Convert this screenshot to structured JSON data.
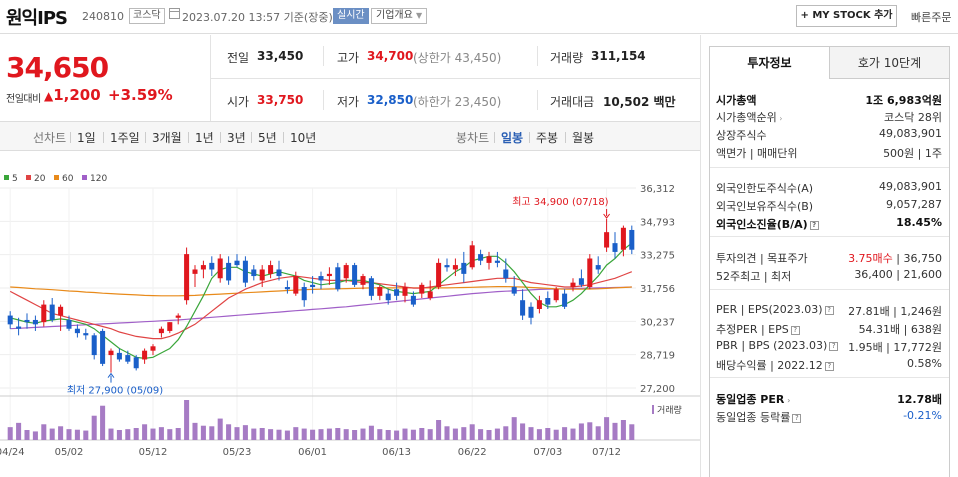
{
  "header": {
    "company": "원익IPS",
    "code": "240810",
    "market": "코스닥",
    "timestamp": "2023.07.20 13:57 기준(장중)",
    "realtime": "실시간",
    "overview": "기업개요",
    "mystock": "+ MY STOCK 추가",
    "quick_order": "빠른주문"
  },
  "price": {
    "current": "34,650",
    "prev_label": "전일대비",
    "change": "1,200",
    "change_pct": "+3.59%",
    "change_symbol": "▲"
  },
  "stats": {
    "prev_close": {
      "label": "전일",
      "value": "33,450"
    },
    "high": {
      "label": "고가",
      "value": "34,700",
      "sub": "(상한가 43,450)"
    },
    "volume": {
      "label": "거래량",
      "value": "311,154"
    },
    "open": {
      "label": "시가",
      "value": "33,750"
    },
    "low": {
      "label": "저가",
      "value": "32,850",
      "sub": "(하한가 23,450)"
    },
    "amount": {
      "label": "거래대금",
      "value": "10,502",
      "unit": "백만"
    }
  },
  "periods": {
    "label": "선차트",
    "items": [
      "1일",
      "1주일",
      "3개월",
      "1년",
      "3년",
      "5년",
      "10년"
    ],
    "candle_label": "봉차트",
    "candle_items": [
      "일봉",
      "주봉",
      "월봉"
    ],
    "candle_selected": "일봉"
  },
  "chart_data": {
    "type": "candlestick",
    "legend": [
      {
        "name": "5",
        "color": "#3aa63a"
      },
      {
        "name": "20",
        "color": "#e04444"
      },
      {
        "name": "60",
        "color": "#e88a1a"
      },
      {
        "name": "120",
        "color": "#a05fc8"
      }
    ],
    "y_ticks": [
      "36,312",
      "34,793",
      "33,275",
      "31,756",
      "30,237",
      "28,719",
      "27,200"
    ],
    "ylim": [
      27200,
      36312
    ],
    "x_ticks": [
      "04/24",
      "05/02",
      "05/12",
      "05/23",
      "06/01",
      "06/13",
      "06/22",
      "07/03",
      "07/12"
    ],
    "annotation_high": "최고 34,900 (07/18)",
    "annotation_low": "최저 27,900 (05/09)",
    "volume_label": "거래량",
    "candles": [
      [
        30500,
        30700,
        29900,
        30100
      ],
      [
        30000,
        30400,
        29600,
        29900
      ],
      [
        30300,
        30600,
        29900,
        30200
      ],
      [
        30300,
        30500,
        29800,
        30100
      ],
      [
        30200,
        31200,
        30000,
        31000
      ],
      [
        31000,
        31300,
        30200,
        30300
      ],
      [
        30500,
        31000,
        29800,
        30900
      ],
      [
        30300,
        30500,
        29800,
        29900
      ],
      [
        29900,
        30100,
        29500,
        29700
      ],
      [
        29700,
        29900,
        29400,
        29600
      ],
      [
        29600,
        29700,
        28500,
        28700
      ],
      [
        29800,
        29900,
        28200,
        28300
      ],
      [
        28700,
        29000,
        27900,
        28900
      ],
      [
        28800,
        29000,
        28400,
        28500
      ],
      [
        28700,
        28900,
        28300,
        28400
      ],
      [
        28600,
        28700,
        28000,
        28100
      ],
      [
        28500,
        29000,
        28300,
        28900
      ],
      [
        28900,
        29200,
        28700,
        29100
      ],
      [
        29700,
        30000,
        29500,
        29900
      ],
      [
        29800,
        30200,
        29700,
        30200
      ],
      [
        30400,
        30600,
        30100,
        30500
      ],
      [
        31200,
        33600,
        31000,
        33300
      ],
      [
        32400,
        32800,
        31800,
        32600
      ],
      [
        32600,
        33000,
        32200,
        32800
      ],
      [
        32900,
        33200,
        32300,
        32600
      ],
      [
        32200,
        33300,
        32000,
        33100
      ],
      [
        32900,
        33200,
        31900,
        32100
      ],
      [
        33000,
        33300,
        32700,
        32800
      ],
      [
        33000,
        33200,
        31800,
        32000
      ],
      [
        32600,
        32800,
        32100,
        32300
      ],
      [
        32100,
        32800,
        31800,
        32600
      ],
      [
        32400,
        33000,
        32200,
        32800
      ],
      [
        32600,
        33000,
        32100,
        32300
      ],
      [
        31800,
        32100,
        31500,
        31700
      ],
      [
        31500,
        32500,
        31400,
        32300
      ],
      [
        31800,
        32000,
        30900,
        31200
      ],
      [
        31900,
        32300,
        31500,
        31800
      ],
      [
        32300,
        32500,
        31700,
        32100
      ],
      [
        32300,
        32700,
        31900,
        32400
      ],
      [
        32700,
        32900,
        31600,
        31700
      ],
      [
        32200,
        32900,
        32000,
        32800
      ],
      [
        32800,
        32900,
        31800,
        31900
      ],
      [
        31900,
        32400,
        31700,
        32300
      ],
      [
        32200,
        32300,
        31200,
        31400
      ],
      [
        31400,
        31900,
        31200,
        31800
      ],
      [
        31500,
        31700,
        31000,
        31200
      ],
      [
        31700,
        32000,
        31200,
        31400
      ],
      [
        31400,
        32000,
        31100,
        31800
      ],
      [
        31400,
        31600,
        30900,
        31000
      ],
      [
        31500,
        32000,
        31300,
        31900
      ],
      [
        31300,
        32100,
        31200,
        31600
      ],
      [
        31800,
        33100,
        31700,
        32900
      ],
      [
        32800,
        33100,
        32500,
        32700
      ],
      [
        32600,
        33100,
        32300,
        32800
      ],
      [
        32900,
        33400,
        32000,
        32400
      ],
      [
        32700,
        33900,
        32600,
        33700
      ],
      [
        33300,
        33500,
        32800,
        33000
      ],
      [
        32900,
        33400,
        32600,
        33200
      ],
      [
        33000,
        33400,
        32700,
        32900
      ],
      [
        32600,
        33100,
        32000,
        32200
      ],
      [
        31800,
        32300,
        31400,
        31500
      ],
      [
        31200,
        31700,
        30300,
        30500
      ],
      [
        30900,
        31100,
        30100,
        30400
      ],
      [
        30800,
        31400,
        30600,
        31200
      ],
      [
        31300,
        31600,
        30800,
        31000
      ],
      [
        31200,
        31800,
        31100,
        31700
      ],
      [
        31500,
        31700,
        30800,
        30900
      ],
      [
        31800,
        32200,
        31600,
        32000
      ],
      [
        32200,
        32600,
        31800,
        31900
      ],
      [
        31800,
        33300,
        31700,
        33100
      ],
      [
        32800,
        33200,
        32400,
        32600
      ],
      [
        33600,
        34900,
        33400,
        34300
      ],
      [
        33800,
        34300,
        33100,
        33400
      ],
      [
        33500,
        34600,
        33200,
        34500
      ],
      [
        34400,
        34600,
        33300,
        33500
      ]
    ],
    "ma5": [
      30400,
      30300,
      30200,
      30150,
      30250,
      30300,
      30350,
      30300,
      30200,
      30100,
      29900,
      29600,
      29300,
      29000,
      28800,
      28600,
      28550,
      28600,
      28800,
      29000,
      29400,
      30000,
      30700,
      31400,
      32200,
      32600,
      32700,
      32700,
      32500,
      32400,
      32300,
      32400,
      32500,
      32400,
      32300,
      32100,
      32000,
      31900,
      31950,
      32000,
      32100,
      32100,
      32100,
      32000,
      31900,
      31700,
      31600,
      31550,
      31500,
      31550,
      31600,
      31900,
      32200,
      32500,
      32700,
      33000,
      33100,
      33200,
      33200,
      32900,
      32500,
      32000,
      31500,
      31100,
      30900,
      30900,
      31000,
      31200,
      31500,
      31900,
      32300,
      32800,
      33100,
      33500,
      33800
    ],
    "ma20": [
      31600,
      31400,
      31200,
      31000,
      30800,
      30600,
      30500,
      30400,
      30300,
      30200,
      30100,
      30000,
      29900,
      29750,
      29650,
      29550,
      29500,
      29450,
      29450,
      29550,
      29700,
      29900,
      30100,
      30400,
      30700,
      31000,
      31300,
      31500,
      31700,
      31850,
      32000,
      32100,
      32200,
      32250,
      32300,
      32250,
      32200,
      32150,
      32100,
      32100,
      32100,
      32050,
      32000,
      32000,
      31950,
      31900,
      31850,
      31800,
      31750,
      31750,
      31800,
      31850,
      31900,
      31950,
      32000,
      32050,
      32100,
      32150,
      32200,
      32200,
      32200,
      32100,
      32000,
      31950,
      31900,
      31850,
      31800,
      31800,
      31850,
      31900,
      32000,
      32100,
      32200,
      32350,
      32500
    ],
    "ma60": [
      31800,
      31780,
      31750,
      31720,
      31700,
      31680,
      31650,
      31620,
      31600,
      31570,
      31550,
      31520,
      31500,
      31480,
      31460,
      31440,
      31420,
      31410,
      31400,
      31400,
      31400,
      31410,
      31420,
      31440,
      31460,
      31480,
      31500,
      31520,
      31540,
      31560,
      31580,
      31600,
      31620,
      31640,
      31660,
      31680,
      31690,
      31700,
      31710,
      31720,
      31730,
      31740,
      31750,
      31760,
      31760,
      31760,
      31760,
      31760,
      31760,
      31760,
      31760,
      31760,
      31760,
      31770,
      31780,
      31790,
      31800,
      31810,
      31820,
      31820,
      31810,
      31800,
      31780,
      31760,
      31740,
      31720,
      31700,
      31700,
      31700,
      31710,
      31720,
      31740,
      31760,
      31780,
      31800
    ],
    "ma120": [
      29900,
      29920,
      29940,
      29960,
      29980,
      30000,
      30020,
      30040,
      30060,
      30080,
      30100,
      30120,
      30140,
      30160,
      30180,
      30200,
      30220,
      30240,
      30260,
      30280,
      30300,
      30330,
      30360,
      30390,
      30420,
      30450,
      30480,
      30510,
      30540,
      30570,
      30600,
      30630,
      30660,
      30690,
      30720,
      30750,
      30780,
      30810,
      30840,
      30870,
      30900,
      30940,
      30980,
      31020,
      31060,
      31100,
      31140,
      31180,
      31220,
      31260,
      31300,
      31340,
      31380,
      31420,
      31460,
      31500,
      31530,
      31560,
      31590,
      31610,
      31630,
      31650,
      31670,
      31690,
      31700,
      31710,
      31720,
      31730,
      31740,
      31750,
      31760,
      31770,
      31780,
      31790,
      31800
    ],
    "volumes": [
      45,
      60,
      35,
      30,
      55,
      40,
      48,
      38,
      36,
      33,
      85,
      120,
      40,
      35,
      38,
      42,
      55,
      40,
      45,
      38,
      42,
      140,
      60,
      50,
      48,
      75,
      55,
      45,
      52,
      40,
      42,
      38,
      36,
      33,
      45,
      40,
      36,
      38,
      40,
      42,
      38,
      35,
      40,
      50,
      38,
      35,
      33,
      40,
      36,
      42,
      38,
      70,
      48,
      40,
      45,
      55,
      38,
      35,
      40,
      48,
      80,
      58,
      45,
      38,
      42,
      36,
      45,
      40,
      58,
      62,
      48,
      80,
      60,
      70,
      55
    ]
  },
  "side": {
    "tab_active": "투자정보",
    "tab_other": "호가 10단계",
    "rows": [
      {
        "label": "시가총액",
        "value": "1조 6,983억원",
        "bold": true
      },
      {
        "label": "시가총액순위",
        "value": "코스닥 28위",
        "icon": "chevron"
      },
      {
        "label": "상장주식수",
        "value": "49,083,901"
      },
      {
        "label": "액면가 | 매매단위",
        "value": "500원 | 1주"
      },
      {
        "label": "외국인한도주식수(A)",
        "value": "49,083,901"
      },
      {
        "label": "외국인보유주식수(B)",
        "value": "9,057,287"
      },
      {
        "label": "외국인소진율(B/A)",
        "value": "18.45%",
        "bold": true,
        "icon": "box"
      },
      {
        "label": "투자의견 | 목표주가",
        "value_red": "3.75매수",
        "value_rest": " | 36,750"
      },
      {
        "label": "52주최고 | 최저",
        "value": "36,400 | 21,600"
      },
      {
        "label": "PER | EPS(2023.03)",
        "value": "27.81배 | 1,246원",
        "icon": "box"
      },
      {
        "label": "추정PER | EPS",
        "value": "54.31배 | 638원",
        "icon": "box"
      },
      {
        "label": "PBR | BPS (2023.03)",
        "value": "1.95배 | 17,772원",
        "icon": "box"
      },
      {
        "label": "배당수익률 | 2022.12",
        "value": "0.58%",
        "icon": "box"
      },
      {
        "label": "동일업종 PER",
        "value": "12.78배",
        "bold": true,
        "icon": "chevron"
      },
      {
        "label": "동일업종 등락률",
        "value": "-0.21%",
        "blue": true,
        "icon": "box"
      }
    ]
  }
}
